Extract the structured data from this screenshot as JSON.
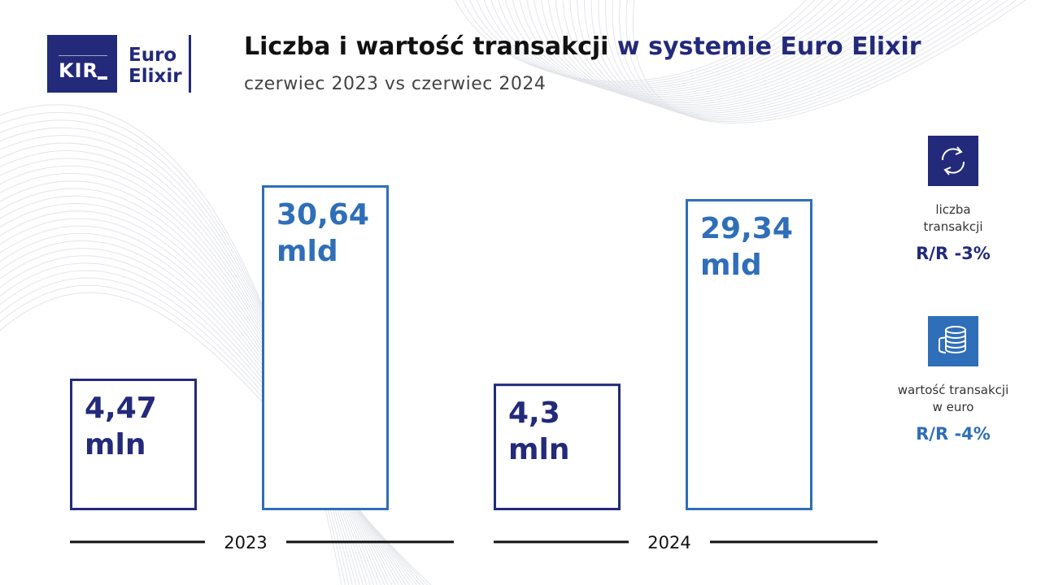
{
  "logo": {
    "mark": "KIR",
    "line1": "Euro",
    "line2": "Elixir"
  },
  "header": {
    "title_main": "Liczba i wartość transakcji",
    "title_accent": "w systemie Euro Elixir",
    "subtitle": "czerwiec 2023 vs czerwiec 2024"
  },
  "colors": {
    "navy": "#232a7a",
    "blue": "#2f6eb8",
    "text": "#111111"
  },
  "chart_data": {
    "type": "bar",
    "categories": [
      "2023",
      "2024"
    ],
    "series": [
      {
        "name": "liczba transakcji",
        "values": [
          4.47,
          4.3
        ],
        "labels": [
          "4,47\nmln",
          "4,3\nmln"
        ],
        "color": "#232a7a"
      },
      {
        "name": "wartość transakcji w euro",
        "values": [
          30.64,
          29.34
        ],
        "labels": [
          "30,64\nmld",
          "29,34\nmld"
        ],
        "color": "#2f6eb8"
      }
    ],
    "grid": false
  },
  "legend": [
    {
      "icon": "exchange-arrows-icon",
      "label_line1": "liczba",
      "label_line2": "transakcji",
      "yoy": "R/R -3%"
    },
    {
      "icon": "coins-stack-icon",
      "label_line1": "wartość transakcji",
      "label_line2": "w euro",
      "yoy": "R/R -4%"
    }
  ]
}
